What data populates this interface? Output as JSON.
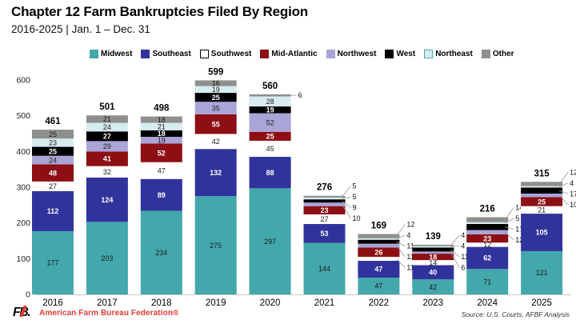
{
  "chart_data": {
    "type": "bar",
    "stacked": true,
    "title": "Chapter 12 Farm Bankruptcies Filed By Region",
    "subtitle": "2016-2025 | Jan. 1 – Dec. 31",
    "xlabel": "",
    "ylabel": "",
    "ylim": [
      0,
      600
    ],
    "yticks": [
      0,
      100,
      200,
      300,
      400,
      500,
      600
    ],
    "grid": false,
    "legend_position": "top",
    "categories": [
      "2016",
      "2017",
      "2018",
      "2019",
      "2020",
      "2021",
      "2022",
      "2023",
      "2024",
      "2025"
    ],
    "series": [
      {
        "name": "Midwest",
        "color": "#43A8AC",
        "label_color": "#1A1A1A",
        "values": [
          177,
          203,
          234,
          275,
          297,
          144,
          47,
          42,
          71,
          121
        ]
      },
      {
        "name": "Southeast",
        "color": "#31339C",
        "label_color": "#FFFFFF",
        "values": [
          112,
          124,
          89,
          132,
          88,
          53,
          47,
          40,
          62,
          105
        ]
      },
      {
        "name": "Southwest",
        "color": "#FFFFFF",
        "label_color": "#1A1A1A",
        "swatch_border": "#000000",
        "values": [
          27,
          32,
          47,
          42,
          45,
          27,
          11,
          14,
          12,
          21
        ]
      },
      {
        "name": "Mid-Atlantic",
        "color": "#8D0E13",
        "label_color": "#FFFFFF",
        "values": [
          48,
          41,
          52,
          55,
          25,
          23,
          26,
          18,
          23,
          25
        ]
      },
      {
        "name": "Northwest",
        "color": "#A9A5D8",
        "label_color": "#1A1A1A",
        "values": [
          24,
          29,
          19,
          35,
          52,
          10,
          11,
          6,
          12,
          10
        ]
      },
      {
        "name": "West",
        "color": "#000000",
        "label_color": "#FFFFFF",
        "values": [
          25,
          27,
          18,
          25,
          19,
          9,
          11,
          11,
          17,
          17
        ]
      },
      {
        "name": "Northeast",
        "color": "#D8ECF0",
        "label_color": "#1A1A1A",
        "swatch_border": "#43A8AC",
        "values": [
          23,
          24,
          21,
          19,
          28,
          5,
          4,
          4,
          5,
          4
        ]
      },
      {
        "name": "Other",
        "color": "#8F8F8F",
        "label_color": "#1A1A1A",
        "values": [
          25,
          21,
          18,
          16,
          6,
          5,
          12,
          4,
          14,
          12
        ]
      }
    ],
    "totals": [
      461,
      501,
      498,
      599,
      560,
      276,
      169,
      139,
      216,
      315
    ],
    "outside_labels": {
      "2016": [],
      "2017": [],
      "2018": [],
      "2019": [],
      "2020": [
        "Other"
      ],
      "2021": [
        "Other",
        "Northeast",
        "West",
        "Northwest"
      ],
      "2022": [
        "Other",
        "Northeast",
        "West",
        "Northwest",
        "Southwest"
      ],
      "2023": [
        "Other",
        "Northeast",
        "West",
        "Northwest"
      ],
      "2024": [
        "Other",
        "Northeast",
        "West",
        "Northwest"
      ],
      "2025": [
        "Other",
        "Northeast",
        "West",
        "Northwest"
      ]
    }
  },
  "footer": {
    "logo_text": "FB.",
    "org_name": "American Farm Bureau Federation®",
    "source": "Source: U.S. Courts, AFBF Analysis"
  }
}
